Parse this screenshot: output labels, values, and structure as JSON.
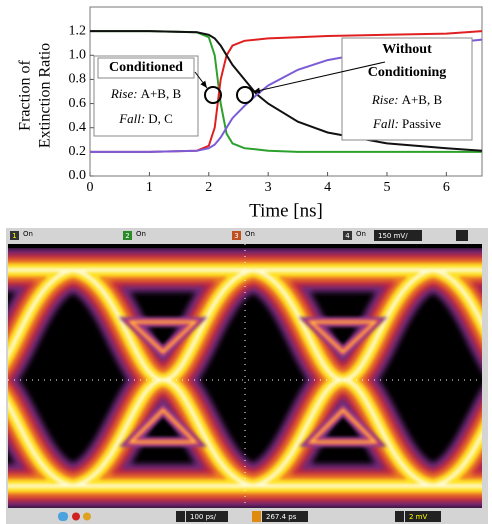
{
  "chart_data": {
    "type": "line",
    "xlabel": "Time [ns]",
    "ylabel": [
      "Fraction of",
      "Extinction Ratio"
    ],
    "x": [
      0,
      1,
      1.8,
      2.0,
      2.1,
      2.2,
      2.3,
      2.4,
      2.6,
      2.8,
      3.0,
      3.5,
      4,
      5,
      6,
      6.6
    ],
    "series": [
      {
        "color": "#2ca02c",
        "values": [
          1.2,
          1.2,
          1.19,
          1.15,
          1.0,
          0.6,
          0.35,
          0.27,
          0.23,
          0.22,
          0.21,
          0.2,
          0.2,
          0.2,
          0.2,
          0.2
        ]
      },
      {
        "color": "#e02020",
        "values": [
          0.2,
          0.2,
          0.21,
          0.25,
          0.4,
          0.8,
          1.0,
          1.08,
          1.12,
          1.13,
          1.14,
          1.15,
          1.16,
          1.17,
          1.18,
          1.2
        ]
      },
      {
        "color": "#111111",
        "values": [
          1.2,
          1.2,
          1.19,
          1.17,
          1.14,
          1.08,
          1.0,
          0.92,
          0.8,
          0.68,
          0.6,
          0.45,
          0.36,
          0.27,
          0.23,
          0.21
        ]
      },
      {
        "color": "#7b5cd6",
        "values": [
          0.2,
          0.2,
          0.21,
          0.23,
          0.26,
          0.32,
          0.4,
          0.48,
          0.58,
          0.67,
          0.75,
          0.88,
          0.96,
          1.05,
          1.1,
          1.13
        ]
      }
    ],
    "xlim": [
      0,
      6.6
    ],
    "xticks": [
      0,
      1,
      2,
      3,
      4,
      5,
      6
    ],
    "ylim": [
      0,
      1.4
    ],
    "yticks": [
      {
        "value": 0,
        "label": "0.0"
      },
      {
        "value": 0.2,
        "label": "0.2"
      },
      {
        "value": 0.4,
        "label": "0.4"
      },
      {
        "value": 0.6,
        "label": "0.6"
      },
      {
        "value": 0.8,
        "label": "0.8"
      },
      {
        "value": 1.0,
        "label": "1.0"
      },
      {
        "value": 1.2,
        "label": "1.2"
      }
    ],
    "annotations": {
      "conditioned": {
        "title": "Conditioned",
        "rise": {
          "label": "Rise:",
          "text": "A+B, B"
        },
        "fall": {
          "label": "Fall:",
          "text": "D, C"
        }
      },
      "without": {
        "title": [
          "Without",
          "Conditioning"
        ],
        "rise": {
          "label": "Rise:",
          "text": "A+B, B"
        },
        "fall": {
          "label": "Fall:",
          "text": "Passive"
        }
      }
    }
  },
  "scope": {
    "channels": [
      {
        "number": "1",
        "state": "On"
      },
      {
        "number": "2",
        "state": "On"
      },
      {
        "number": "3",
        "state": "On"
      },
      {
        "number": "4",
        "state": "On"
      }
    ],
    "ch4_scale": "150 mV/",
    "timebase": "100 ps/",
    "position": "267.4 ps",
    "trigger_level": "2 mV"
  }
}
